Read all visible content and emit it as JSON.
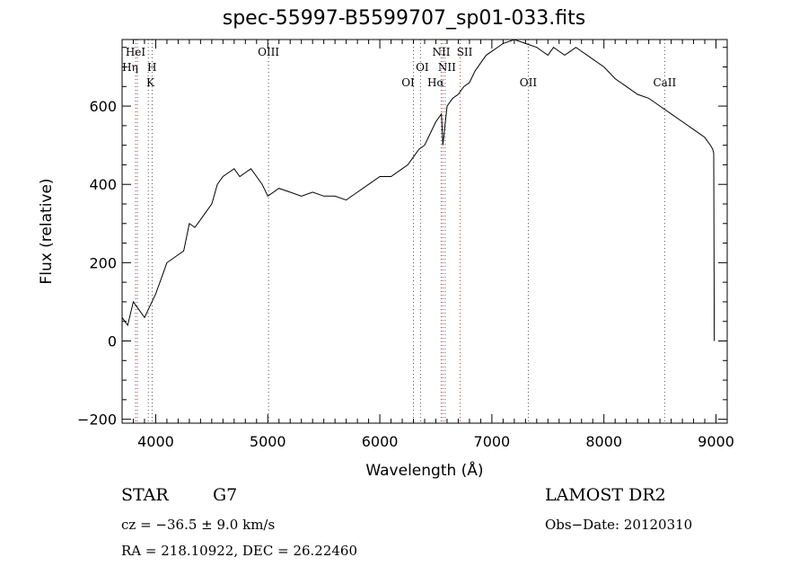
{
  "chart_data": {
    "type": "line",
    "title": "spec-55997-B5599707_sp01-033.fits",
    "xlabel": "Wavelength (Å)",
    "ylabel": "Flux (relative)",
    "xlim": [
      3700,
      9100
    ],
    "ylim": [
      -210,
      770
    ],
    "x_ticks": [
      4000,
      5000,
      6000,
      7000,
      8000,
      9000
    ],
    "x_tick_labels": [
      "4000",
      "5000",
      "6000",
      "7000",
      "8000",
      "9000"
    ],
    "y_ticks": [
      -200,
      0,
      200,
      400,
      600
    ],
    "y_tick_labels": [
      "−200",
      "0",
      "200",
      "400",
      "600"
    ],
    "series": [
      {
        "name": "flux",
        "x": [
          3700,
          3750,
          3800,
          3850,
          3900,
          3950,
          4000,
          4050,
          4100,
          4150,
          4200,
          4250,
          4300,
          4350,
          4400,
          4450,
          4500,
          4550,
          4600,
          4650,
          4700,
          4750,
          4800,
          4850,
          4900,
          4950,
          5000,
          5100,
          5200,
          5300,
          5400,
          5500,
          5600,
          5700,
          5800,
          5900,
          6000,
          6100,
          6200,
          6250,
          6300,
          6350,
          6400,
          6450,
          6500,
          6550,
          6563,
          6600,
          6650,
          6700,
          6750,
          6800,
          6850,
          6900,
          6950,
          7000,
          7100,
          7200,
          7300,
          7400,
          7450,
          7500,
          7550,
          7600,
          7650,
          7700,
          7750,
          7800,
          7850,
          7900,
          8000,
          8100,
          8200,
          8300,
          8400,
          8500,
          8600,
          8700,
          8800,
          8900,
          8950,
          8970,
          8980,
          8985
        ],
        "values": [
          60,
          40,
          100,
          80,
          60,
          90,
          120,
          160,
          200,
          210,
          220,
          230,
          300,
          290,
          310,
          330,
          350,
          400,
          420,
          430,
          440,
          420,
          430,
          440,
          420,
          400,
          370,
          390,
          380,
          370,
          380,
          370,
          370,
          360,
          380,
          400,
          420,
          420,
          440,
          450,
          470,
          490,
          500,
          530,
          560,
          580,
          500,
          600,
          620,
          630,
          650,
          660,
          690,
          710,
          730,
          740,
          760,
          770,
          760,
          750,
          740,
          730,
          750,
          740,
          730,
          740,
          750,
          740,
          730,
          720,
          700,
          670,
          650,
          630,
          620,
          600,
          580,
          560,
          540,
          520,
          500,
          490,
          480,
          0
        ]
      }
    ],
    "line_markers": [
      {
        "name": "HeI",
        "wavelength": 3820,
        "color": "#555555"
      },
      {
        "name": "Hη",
        "wavelength": 3836,
        "color": "#d03030"
      },
      {
        "name": "H",
        "wavelength": 3934,
        "color": "#555555"
      },
      {
        "name": "K",
        "wavelength": 3968,
        "color": "#555555"
      },
      {
        "name": "OIII",
        "wavelength": 5007,
        "color": "#555555"
      },
      {
        "name": "OI",
        "wavelength": 6300,
        "color": "#555555"
      },
      {
        "name": "OI",
        "wavelength": 6363,
        "color": "#555555"
      },
      {
        "name": "NII",
        "wavelength": 6548,
        "color": "#555555"
      },
      {
        "name": "Hα",
        "wavelength": 6563,
        "color": "#d03030"
      },
      {
        "name": "NII",
        "wavelength": 6583,
        "color": "#555555"
      },
      {
        "name": "SII",
        "wavelength": 6717,
        "color": "#d03030"
      },
      {
        "name": "OII",
        "wavelength": 7325,
        "color": "#555555"
      },
      {
        "name": "CaII",
        "wavelength": 8542,
        "color": "#555555"
      }
    ]
  },
  "info": {
    "class_label": "STAR",
    "subclass": "G7",
    "survey": "LAMOST DR2",
    "cz": "cz = −36.5 ± 9.0 km/s",
    "obs_date": "Obs−Date: 20120310",
    "coords": "RA = 218.10922, DEC =  26.22460"
  }
}
